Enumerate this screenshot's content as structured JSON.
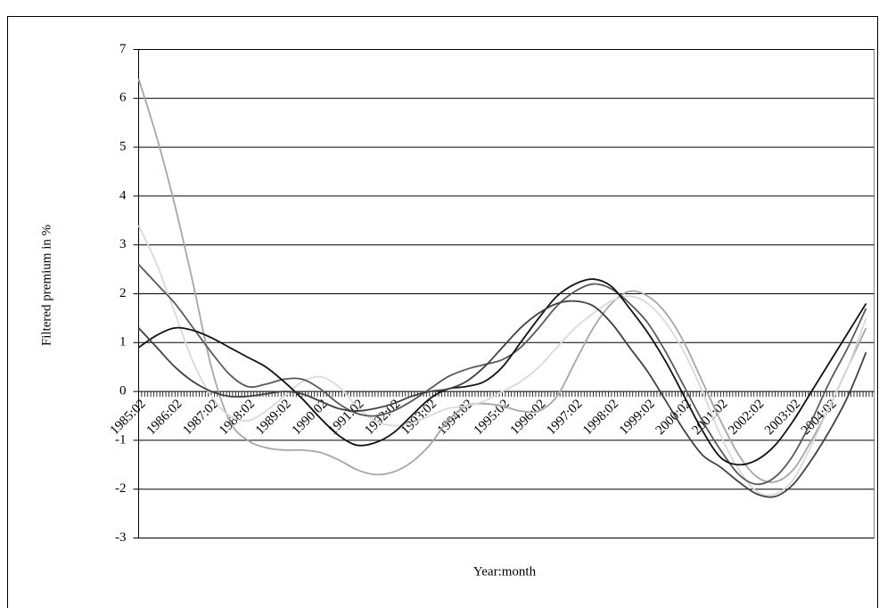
{
  "chart_data": {
    "type": "line",
    "ylabel": "Filtered premium in %",
    "xlabel": "Year:month",
    "categories": [
      "1985:02",
      null,
      "1986:02",
      null,
      "1987:02",
      null,
      "1988:02",
      null,
      "1989:02",
      null,
      "1990:02",
      null,
      "1991:02",
      null,
      "1992:02",
      null,
      "1993:02",
      null,
      "1994:02",
      null,
      "1995:02",
      null,
      "1996:02",
      null,
      "1997:02",
      null,
      "1998:02",
      null,
      "1999:02",
      null,
      "2000:02",
      null,
      "2001:02",
      null,
      "2002:02",
      null,
      "2003:02",
      null,
      "2004:02",
      null,
      null
    ],
    "series": [
      {
        "color": "#a6a6a6",
        "values": [
          6.4,
          5.2,
          3.8,
          2.2,
          0.5,
          -0.6,
          -1.0,
          -1.15,
          -1.2,
          -1.2,
          -1.25,
          -1.4,
          -1.6,
          -1.7,
          -1.65,
          -1.45,
          -1.1,
          -0.6,
          -0.3,
          -0.25,
          -0.3,
          -0.4,
          -0.4,
          -0.1,
          0.6,
          1.3,
          1.8,
          2.05,
          1.95,
          1.6,
          1.0,
          0.2,
          -0.6,
          -1.3,
          -1.75,
          -1.85,
          -1.6,
          -1.0,
          -0.3,
          0.5,
          1.3
        ]
      },
      {
        "color": "#d9d9d9",
        "values": [
          3.4,
          2.6,
          1.6,
          0.6,
          -0.1,
          -0.5,
          -0.6,
          -0.4,
          -0.1,
          0.2,
          0.3,
          0.1,
          -0.3,
          -0.6,
          -0.7,
          -0.65,
          -0.5,
          -0.35,
          -0.3,
          -0.2,
          0,
          0.2,
          0.5,
          0.9,
          1.3,
          1.6,
          1.85,
          1.95,
          1.8,
          1.4,
          0.8,
          0,
          -0.9,
          -1.6,
          -2.05,
          -2.1,
          -1.8,
          -1.1,
          -0.3,
          0.5,
          1.5
        ]
      },
      {
        "color": "#595959",
        "values": [
          2.6,
          2.2,
          1.8,
          1.3,
          0.8,
          0.35,
          0.1,
          0.15,
          0.25,
          0.25,
          0.05,
          -0.25,
          -0.45,
          -0.5,
          -0.4,
          -0.2,
          0.05,
          0.3,
          0.45,
          0.55,
          0.65,
          0.9,
          1.3,
          1.75,
          2.05,
          2.2,
          2.1,
          1.8,
          1.4,
          0.8,
          0.1,
          -0.6,
          -1.2,
          -1.7,
          -1.9,
          -1.75,
          -1.3,
          -0.6,
          0.2,
          0.9,
          1.7
        ]
      },
      {
        "color": "#111111",
        "values": [
          0.9,
          1.15,
          1.3,
          1.25,
          1.1,
          0.9,
          0.7,
          0.5,
          0.2,
          -0.15,
          -0.55,
          -0.9,
          -1.1,
          -1.05,
          -0.85,
          -0.5,
          -0.15,
          0.05,
          0.1,
          0.2,
          0.5,
          1.0,
          1.5,
          1.95,
          2.2,
          2.3,
          2.15,
          1.7,
          1.2,
          0.6,
          -0.1,
          -0.8,
          -1.35,
          -1.5,
          -1.4,
          -1.1,
          -0.6,
          0,
          0.6,
          1.2,
          1.8
        ]
      },
      {
        "color": "#404040",
        "values": [
          1.3,
          0.9,
          0.5,
          0.2,
          0,
          -0.1,
          -0.1,
          -0.05,
          0,
          -0.05,
          -0.2,
          -0.35,
          -0.4,
          -0.35,
          -0.25,
          -0.1,
          0,
          0.05,
          0.2,
          0.5,
          0.9,
          1.3,
          1.6,
          1.8,
          1.85,
          1.75,
          1.4,
          0.9,
          0.4,
          -0.2,
          -0.8,
          -1.3,
          -1.55,
          -1.85,
          -2.1,
          -2.15,
          -1.9,
          -1.4,
          -0.8,
          -0.1,
          0.8
        ]
      }
    ],
    "ylim": [
      -3,
      7
    ],
    "yticks": [
      -3,
      -2,
      -1,
      0,
      1,
      2,
      3,
      4,
      5,
      6,
      7
    ],
    "grid": true
  }
}
